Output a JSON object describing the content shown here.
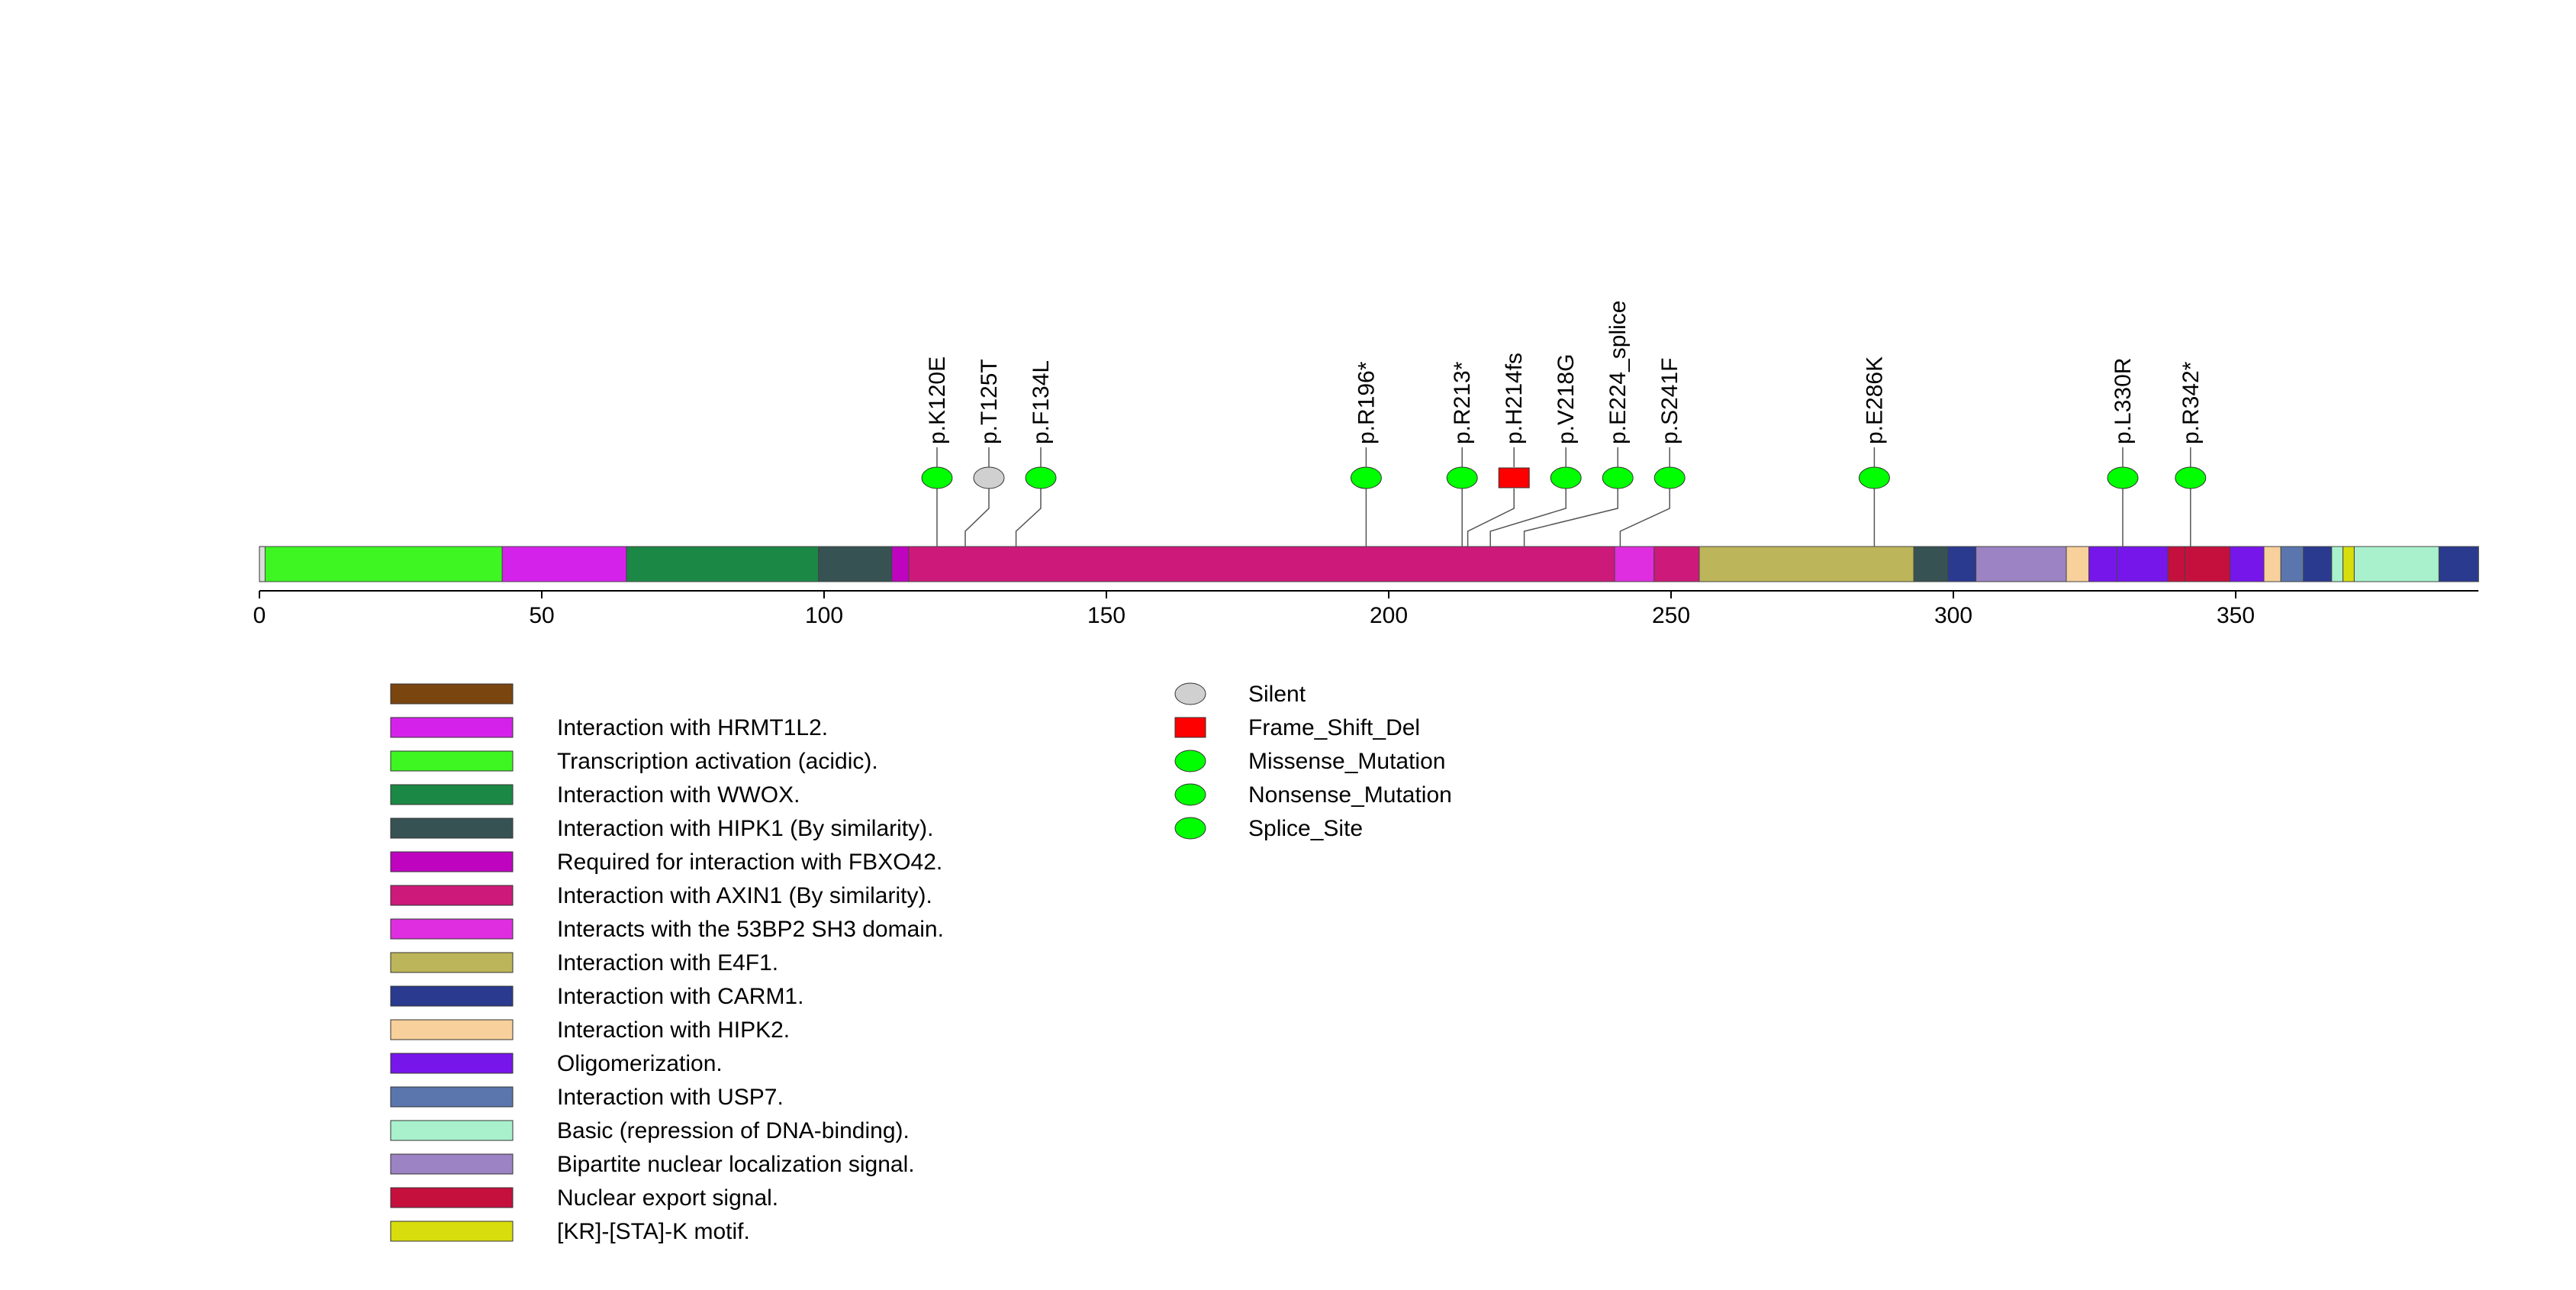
{
  "chart_data": {
    "type": "lollipop",
    "axis": {
      "min": 0,
      "max": 393,
      "ticks": [
        0,
        50,
        100,
        150,
        200,
        250,
        300,
        350
      ]
    },
    "domains": [
      {
        "start": 1,
        "end": 43,
        "color": "#3DF622",
        "name": "Transcription activation (acidic)."
      },
      {
        "start": 43,
        "end": 65,
        "color": "#D522EB",
        "name": "Interaction with HRMT1L2."
      },
      {
        "start": 65,
        "end": 99,
        "color": "#1C8845",
        "name": "Interaction with WWOX."
      },
      {
        "start": 99,
        "end": 112,
        "color": "#375252",
        "name": "Interaction with HIPK1 (By similarity)."
      },
      {
        "start": 112,
        "end": 115,
        "color": "#BF04C0",
        "name": "Required for interaction with FBXO42."
      },
      {
        "start": 115,
        "end": 240,
        "color": "#CD1A7A",
        "name": "Interaction with AXIN1 (By similarity)."
      },
      {
        "start": 240,
        "end": 247,
        "color": "#DF2EDF",
        "name": "Interacts with the 53BP2 SH3 domain."
      },
      {
        "start": 247,
        "end": 255,
        "color": "#CD1A7A",
        "name": "Interaction with AXIN1 (By similarity)."
      },
      {
        "start": 255,
        "end": 293,
        "color": "#BCB55A",
        "name": "Interaction with E4F1."
      },
      {
        "start": 293,
        "end": 299,
        "color": "#375252",
        "name": "Interaction with HIPK1 (By similarity)."
      },
      {
        "start": 299,
        "end": 304,
        "color": "#2A3A8F",
        "name": "Interaction with CARM1."
      },
      {
        "start": 304,
        "end": 320,
        "color": "#9C83C3",
        "name": "Bipartite nuclear localization signal."
      },
      {
        "start": 320,
        "end": 324,
        "color": "#F7D09B",
        "name": "Interaction with HIPK2."
      },
      {
        "start": 324,
        "end": 329,
        "color": "#7716EB",
        "name": "Oligomerization."
      },
      {
        "start": 329,
        "end": 338,
        "color": "#7716EB",
        "name": "Oligomerization."
      },
      {
        "start": 338,
        "end": 341,
        "color": "#C5103E",
        "name": "Nuclear export signal."
      },
      {
        "start": 341,
        "end": 349,
        "color": "#C5103E",
        "name": "Nuclear export signal."
      },
      {
        "start": 349,
        "end": 355,
        "color": "#7716EB",
        "name": "Oligomerization."
      },
      {
        "start": 355,
        "end": 358,
        "color": "#F7D09B",
        "name": "Interaction with HIPK2."
      },
      {
        "start": 358,
        "end": 362,
        "color": "#5A76AD",
        "name": "Interaction with USP7."
      },
      {
        "start": 362,
        "end": 367,
        "color": "#2A3A8F",
        "name": "Interaction with CARM1."
      },
      {
        "start": 367,
        "end": 369,
        "color": "#A8F1CC",
        "name": "Basic (repression of DNA-binding)."
      },
      {
        "start": 369,
        "end": 371,
        "color": "#D8DD0D",
        "name": "[KR]-[STA]-K motif."
      },
      {
        "start": 371,
        "end": 386,
        "color": "#A8F1CC",
        "name": "Basic (repression of DNA-binding)."
      },
      {
        "start": 386,
        "end": 393,
        "color": "#2A3A8F",
        "name": "Interaction with CARM1."
      }
    ],
    "mutations": [
      {
        "label": "p.K120E",
        "position": 120,
        "type": "Missense_Mutation"
      },
      {
        "label": "p.T125T",
        "position": 125,
        "type": "Silent"
      },
      {
        "label": "p.F134L",
        "position": 134,
        "type": "Missense_Mutation"
      },
      {
        "label": "p.R196*",
        "position": 196,
        "type": "Nonsense_Mutation"
      },
      {
        "label": "p.R213*",
        "position": 213,
        "type": "Nonsense_Mutation"
      },
      {
        "label": "p.H214fs",
        "position": 214,
        "type": "Frame_Shift_Del"
      },
      {
        "label": "p.V218G",
        "position": 218,
        "type": "Missense_Mutation"
      },
      {
        "label": "p.E224_splice",
        "position": 224,
        "type": "Splice_Site"
      },
      {
        "label": "p.S241F",
        "position": 241,
        "type": "Missense_Mutation"
      },
      {
        "label": "p.E286K",
        "position": 286,
        "type": "Missense_Mutation"
      },
      {
        "label": "p.L330R",
        "position": 330,
        "type": "Missense_Mutation"
      },
      {
        "label": "p.R342*",
        "position": 342,
        "type": "Nonsense_Mutation"
      }
    ],
    "domain_legend": [
      {
        "label": "",
        "color": "#7B4510"
      },
      {
        "label": "Interaction with HRMT1L2.",
        "color": "#D522EB"
      },
      {
        "label": "Transcription activation (acidic).",
        "color": "#3DF622"
      },
      {
        "label": "Interaction with WWOX.",
        "color": "#1C8845"
      },
      {
        "label": "Interaction with HIPK1 (By similarity).",
        "color": "#375252"
      },
      {
        "label": "Required for interaction with FBXO42.",
        "color": "#BF04C0"
      },
      {
        "label": "Interaction with AXIN1 (By similarity).",
        "color": "#CD1A7A"
      },
      {
        "label": "Interacts with the 53BP2 SH3 domain.",
        "color": "#DF2EDF"
      },
      {
        "label": "Interaction with E4F1.",
        "color": "#BCB55A"
      },
      {
        "label": "Interaction with CARM1.",
        "color": "#2A3A8F"
      },
      {
        "label": "Interaction with HIPK2.",
        "color": "#F7D09B"
      },
      {
        "label": "Oligomerization.",
        "color": "#7716EB"
      },
      {
        "label": "Interaction with USP7.",
        "color": "#5A76AD"
      },
      {
        "label": "Basic (repression of DNA-binding).",
        "color": "#A8F1CC"
      },
      {
        "label": "Bipartite nuclear localization signal.",
        "color": "#9C83C3"
      },
      {
        "label": "Nuclear export signal.",
        "color": "#C5103E"
      },
      {
        "label": "[KR]-[STA]-K motif.",
        "color": "#D8DD0D"
      }
    ],
    "mutation_legend": [
      {
        "label": "Silent",
        "shape": "ellipse",
        "color": "#D0D0D0"
      },
      {
        "label": "Frame_Shift_Del",
        "shape": "rect",
        "color": "#FF0000"
      },
      {
        "label": "Missense_Mutation",
        "shape": "ellipse",
        "color": "#00FF00"
      },
      {
        "label": "Nonsense_Mutation",
        "shape": "ellipse",
        "color": "#00FF00"
      },
      {
        "label": "Splice_Site",
        "shape": "ellipse",
        "color": "#00FF00"
      }
    ]
  }
}
